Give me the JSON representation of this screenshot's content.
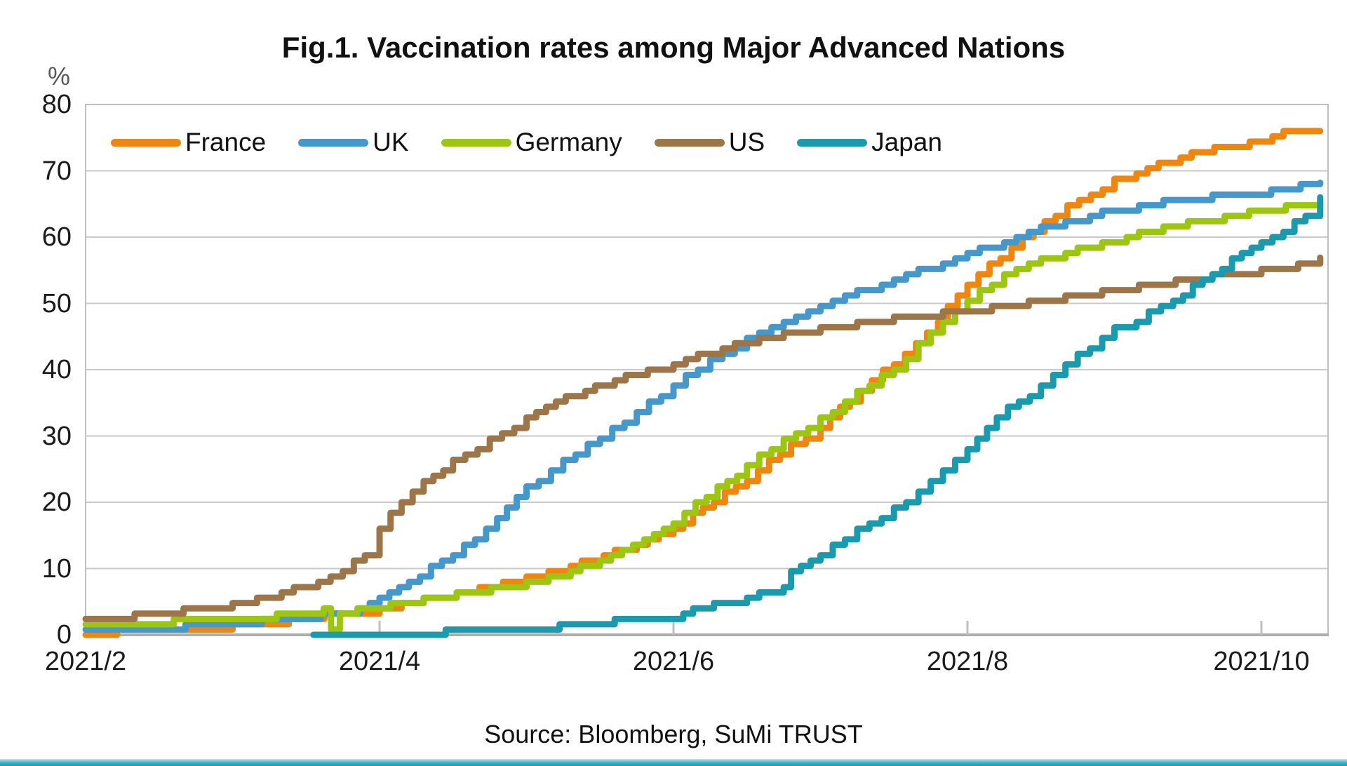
{
  "title": "Fig.1. Vaccination rates among Major Advanced Nations",
  "source": "Source: Bloomberg, SuMi TRUST",
  "y_axis": {
    "unit_label": "%",
    "ticks": [
      80,
      70,
      60,
      50,
      40,
      30,
      20,
      10,
      0
    ],
    "min": 0,
    "max": 80
  },
  "x_axis": {
    "tick_labels": [
      "2021/2",
      "2021/4",
      "2021/6",
      "2021/8",
      "2021/10"
    ],
    "months_between_ticks": 2
  },
  "legend": {
    "items": [
      {
        "label": "France",
        "color": "#ED8712"
      },
      {
        "label": "UK",
        "color": "#4698CB"
      },
      {
        "label": "Germany",
        "color": "#9DC613"
      },
      {
        "label": "US",
        "color": "#9C7548"
      },
      {
        "label": "Japan",
        "color": "#1B9AAE"
      }
    ]
  },
  "colors": {
    "gridline": "#C9C9C9",
    "plot_border": "#BFBFBF",
    "axis_line": "#ADADAD",
    "tick_mark": "#BFBFBF",
    "bottom_strip": "#1B9AAE",
    "background": "#FFFFFF"
  },
  "chart_data": {
    "type": "line",
    "title": "Fig.1. Vaccination rates among Major Advanced Nations",
    "ylabel": "%",
    "ylim": [
      0,
      80
    ],
    "grid": "horizontal",
    "legend_position": "top-inside",
    "x_unit": "months_since_2021_02_01",
    "x_tick_months": [
      0,
      2,
      4,
      6,
      8
    ],
    "x_tick_labels": [
      "2021/2",
      "2021/4",
      "2021/6",
      "2021/8",
      "2021/10"
    ],
    "x_range": [
      0,
      8.45
    ],
    "series": [
      {
        "name": "France",
        "color": "#ED8712",
        "points": [
          [
            0,
            0.3
          ],
          [
            0.5,
            0.6
          ],
          [
            1,
            1.3
          ],
          [
            1.3,
            1.8
          ],
          [
            1.55,
            2.6
          ],
          [
            1.7,
            3.2
          ],
          [
            1.8,
            2.9
          ],
          [
            2,
            3.9
          ],
          [
            2.3,
            5.3
          ],
          [
            2.6,
            6.6
          ],
          [
            3,
            8.6
          ],
          [
            3.3,
            10.4
          ],
          [
            3.6,
            12.4
          ],
          [
            3.9,
            15
          ],
          [
            4,
            16
          ],
          [
            4.2,
            19
          ],
          [
            4.5,
            23.5
          ],
          [
            4.8,
            28.5
          ],
          [
            4.9,
            29.5
          ],
          [
            5,
            31.5
          ],
          [
            5.2,
            35.5
          ],
          [
            5.5,
            41
          ],
          [
            5.8,
            47.5
          ],
          [
            6,
            53
          ],
          [
            6.3,
            58.5
          ],
          [
            6.6,
            63.5
          ],
          [
            7,
            68.5
          ],
          [
            7.3,
            71
          ],
          [
            7.6,
            73
          ],
          [
            8,
            74.5
          ],
          [
            8.15,
            75.8
          ],
          [
            8.4,
            76
          ]
        ]
      },
      {
        "name": "UK",
        "color": "#4698CB",
        "points": [
          [
            0,
            0.9
          ],
          [
            0.3,
            1.0
          ],
          [
            0.6,
            1.2
          ],
          [
            1,
            1.5
          ],
          [
            1.2,
            2.0
          ],
          [
            1.5,
            2.8
          ],
          [
            1.6,
            3.2
          ],
          [
            1.8,
            3.4
          ],
          [
            2,
            5.2
          ],
          [
            2.2,
            8
          ],
          [
            2.5,
            12
          ],
          [
            2.8,
            17.5
          ],
          [
            3,
            22
          ],
          [
            3.25,
            26
          ],
          [
            3.5,
            29.8
          ],
          [
            3.75,
            33.5
          ],
          [
            4,
            37.5
          ],
          [
            4.25,
            41.5
          ],
          [
            4.5,
            44.5
          ],
          [
            4.75,
            47
          ],
          [
            5,
            49.5
          ],
          [
            5.25,
            51.7
          ],
          [
            5.5,
            53.5
          ],
          [
            5.75,
            55.5
          ],
          [
            6,
            57.3
          ],
          [
            6.25,
            59.5
          ],
          [
            6.5,
            61.5
          ],
          [
            6.75,
            62.8
          ],
          [
            7,
            64
          ],
          [
            7.25,
            65
          ],
          [
            7.5,
            65.6
          ],
          [
            7.75,
            66.2
          ],
          [
            8,
            66.6
          ],
          [
            8.2,
            67.5
          ],
          [
            8.4,
            68.2
          ]
        ]
      },
      {
        "name": "Germany",
        "color": "#9DC613",
        "points": [
          [
            0,
            1.7
          ],
          [
            0.3,
            1.9
          ],
          [
            0.6,
            2.0
          ],
          [
            1,
            2.3
          ],
          [
            1.3,
            2.9
          ],
          [
            1.5,
            3.5
          ],
          [
            1.62,
            3.6
          ],
          [
            1.67,
            0.8
          ],
          [
            1.73,
            3.3
          ],
          [
            1.85,
            3.7
          ],
          [
            2,
            4.3
          ],
          [
            2.3,
            5.2
          ],
          [
            2.6,
            6.3
          ],
          [
            3,
            7.8
          ],
          [
            3.3,
            9.5
          ],
          [
            3.5,
            11
          ],
          [
            3.8,
            14
          ],
          [
            4,
            17.2
          ],
          [
            4.3,
            22
          ],
          [
            4.5,
            25.5
          ],
          [
            4.75,
            29.5
          ],
          [
            5,
            32.6
          ],
          [
            5.25,
            36.5
          ],
          [
            5.5,
            40
          ],
          [
            5.75,
            45.5
          ],
          [
            6,
            50.8
          ],
          [
            6.25,
            54
          ],
          [
            6.5,
            56.5
          ],
          [
            6.75,
            58
          ],
          [
            7,
            59.5
          ],
          [
            7.25,
            61
          ],
          [
            7.5,
            62
          ],
          [
            7.75,
            63
          ],
          [
            8,
            64
          ],
          [
            8.25,
            64.8
          ],
          [
            8.4,
            65.3
          ]
        ]
      },
      {
        "name": "US",
        "color": "#9C7548",
        "points": [
          [
            0,
            2
          ],
          [
            0.25,
            2.6
          ],
          [
            0.5,
            3.2
          ],
          [
            0.75,
            3.8
          ],
          [
            1,
            4.4
          ],
          [
            1.25,
            5.8
          ],
          [
            1.5,
            7.3
          ],
          [
            1.75,
            9.8
          ],
          [
            1.9,
            12
          ],
          [
            2,
            16
          ],
          [
            2.15,
            20
          ],
          [
            2.3,
            23.5
          ],
          [
            2.5,
            26
          ],
          [
            2.75,
            29.5
          ],
          [
            3,
            32.5
          ],
          [
            3.2,
            35
          ],
          [
            3.4,
            36.8
          ],
          [
            3.6,
            38.5
          ],
          [
            3.9,
            40.2
          ],
          [
            4,
            40.8
          ],
          [
            4.25,
            42.8
          ],
          [
            4.5,
            44.3
          ],
          [
            4.75,
            45.3
          ],
          [
            5,
            46
          ],
          [
            5.25,
            47
          ],
          [
            5.5,
            47.8
          ],
          [
            5.75,
            48.4
          ],
          [
            6,
            48.9
          ],
          [
            6.25,
            49.7
          ],
          [
            6.5,
            50.3
          ],
          [
            6.75,
            51.2
          ],
          [
            7,
            52
          ],
          [
            7.25,
            52.8
          ],
          [
            7.5,
            53.6
          ],
          [
            7.75,
            54.3
          ],
          [
            8,
            55
          ],
          [
            8.25,
            55.8
          ],
          [
            8.4,
            56.9
          ]
        ]
      },
      {
        "name": "Japan",
        "color": "#1B9AAE",
        "points": [
          [
            1.55,
            0.05
          ],
          [
            2.4,
            0.05
          ],
          [
            2.45,
            0.4
          ],
          [
            2.8,
            0.7
          ],
          [
            3,
            0.9
          ],
          [
            3.3,
            1.4
          ],
          [
            3.6,
            2
          ],
          [
            3.8,
            2.4
          ],
          [
            4,
            2.8
          ],
          [
            4.2,
            4.2
          ],
          [
            4.5,
            5.5
          ],
          [
            4.75,
            7.4
          ],
          [
            4.8,
            9.3
          ],
          [
            5,
            12.2
          ],
          [
            5.25,
            16
          ],
          [
            5.5,
            18.8
          ],
          [
            5.75,
            23
          ],
          [
            6,
            28
          ],
          [
            6.2,
            33
          ],
          [
            6.35,
            35
          ],
          [
            6.5,
            37.5
          ],
          [
            6.75,
            42
          ],
          [
            7,
            46
          ],
          [
            7.15,
            47.5
          ],
          [
            7.4,
            50.5
          ],
          [
            7.6,
            53.7
          ],
          [
            7.8,
            56.5
          ],
          [
            8,
            59.5
          ],
          [
            8.15,
            61
          ],
          [
            8.3,
            63.5
          ],
          [
            8.4,
            66
          ]
        ]
      }
    ]
  }
}
